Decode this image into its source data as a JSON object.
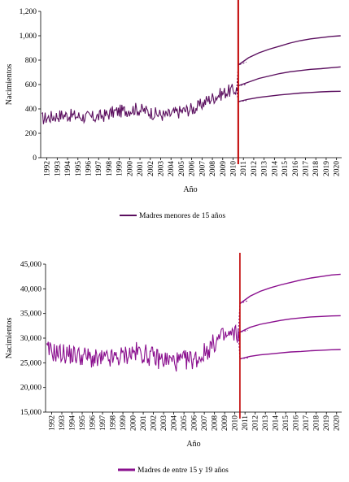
{
  "chart_data": [
    {
      "type": "line",
      "title": "",
      "xlabel": "Año",
      "ylabel": "Nacimientos",
      "ylim": [
        0,
        1200
      ],
      "yticks": [
        "0",
        "200",
        "400",
        "600",
        "800",
        "1,000",
        "1,200"
      ],
      "xticks": [
        "1992",
        "1993",
        "1994",
        "1995",
        "1996",
        "1997",
        "1998",
        "1999",
        "2000",
        "2001",
        "2002",
        "2003",
        "2004",
        "2005",
        "2006",
        "2007",
        "2008",
        "2009",
        "2010",
        "2011",
        "2012",
        "2013",
        "2014",
        "2015",
        "2016",
        "2017",
        "2018",
        "2019",
        "2020"
      ],
      "legend": "Madres menores de 15 años",
      "legend_position": "bottom",
      "grid": false,
      "cutoff_year": 2011.0,
      "series": [
        {
          "name": "Madres menores de 15 años",
          "color": "#5b0f5f",
          "x": [
            1992,
            1993,
            1994,
            1995,
            1996,
            1997,
            1998,
            1999,
            2000,
            2001,
            2002,
            2003,
            2004,
            2005,
            2006,
            2007,
            2008,
            2009,
            2010,
            2011
          ],
          "y": [
            320,
            335,
            350,
            345,
            335,
            330,
            345,
            375,
            385,
            400,
            385,
            360,
            345,
            370,
            390,
            410,
            470,
            510,
            545,
            560
          ]
        },
        {
          "name": "",
          "color": "#5b0f5f",
          "x": [
            2011,
            2012,
            2013,
            2014,
            2015,
            2016,
            2017,
            2018,
            2019,
            2020,
            2020.9
          ],
          "y": [
            590,
            620,
            650,
            670,
            690,
            705,
            715,
            725,
            730,
            738,
            745
          ]
        },
        {
          "name": "",
          "color": "#5b0f5f",
          "x": [
            2011,
            2012,
            2013,
            2014,
            2015,
            2016,
            2017,
            2018,
            2019,
            2020,
            2020.9
          ],
          "y": [
            760,
            820,
            860,
            890,
            915,
            940,
            960,
            975,
            985,
            995,
            1000
          ]
        },
        {
          "name": "",
          "color": "#5b0f5f",
          "x": [
            2011,
            2012,
            2013,
            2014,
            2015,
            2016,
            2017,
            2018,
            2019,
            2020,
            2020.9
          ],
          "y": [
            460,
            480,
            495,
            505,
            515,
            522,
            530,
            535,
            540,
            543,
            545
          ]
        }
      ]
    },
    {
      "type": "line",
      "title": "",
      "xlabel": "Año",
      "ylabel": "Nacimientos",
      "ylim": [
        15000,
        45000
      ],
      "yticks": [
        "15,000",
        "20,000",
        "25,000",
        "30,000",
        "35,000",
        "40,000",
        "45,000"
      ],
      "xticks": [
        "1992",
        "1993",
        "1994",
        "1995",
        "1996",
        "1997",
        "1998",
        "1999",
        "2000",
        "2001",
        "2002",
        "2003",
        "2004",
        "2005",
        "2006",
        "2007",
        "2008",
        "2009",
        "2010",
        "2011",
        "2012",
        "2013",
        "2014",
        "2015",
        "2016",
        "2017",
        "2018",
        "2019",
        "2020"
      ],
      "legend": "Madres de entre 15 y 19 años",
      "legend_position": "bottom",
      "grid": false,
      "cutoff_year": 2011.0,
      "series": [
        {
          "name": "Madres de entre 15 y 19 años",
          "color": "#8a0f8e",
          "x": [
            1992,
            1993,
            1994,
            1995,
            1996,
            1997,
            1998,
            1999,
            2000,
            2001,
            2002,
            2003,
            2004,
            2005,
            2006,
            2007,
            2008,
            2009,
            2010,
            2011
          ],
          "y": [
            27500,
            27000,
            26800,
            26500,
            26200,
            25500,
            25700,
            26000,
            26800,
            27200,
            26500,
            25800,
            25500,
            25200,
            25600,
            26000,
            28000,
            30000,
            30500,
            31000
          ]
        },
        {
          "name": "",
          "color": "#8a0f8e",
          "x": [
            2011,
            2012,
            2013,
            2014,
            2015,
            2016,
            2017,
            2018,
            2019,
            2020,
            2020.9
          ],
          "y": [
            31200,
            32200,
            32800,
            33200,
            33600,
            33900,
            34100,
            34300,
            34400,
            34500,
            34550
          ]
        },
        {
          "name": "",
          "color": "#8a0f8e",
          "x": [
            2011,
            2012,
            2013,
            2014,
            2015,
            2016,
            2017,
            2018,
            2019,
            2020,
            2020.9
          ],
          "y": [
            37000,
            38500,
            39500,
            40200,
            40800,
            41300,
            41800,
            42200,
            42500,
            42800,
            42950
          ]
        },
        {
          "name": "",
          "color": "#8a0f8e",
          "x": [
            2011,
            2012,
            2013,
            2014,
            2015,
            2016,
            2017,
            2018,
            2019,
            2020,
            2020.9
          ],
          "y": [
            25800,
            26300,
            26600,
            26800,
            27000,
            27200,
            27300,
            27450,
            27550,
            27650,
            27700
          ]
        }
      ]
    }
  ]
}
